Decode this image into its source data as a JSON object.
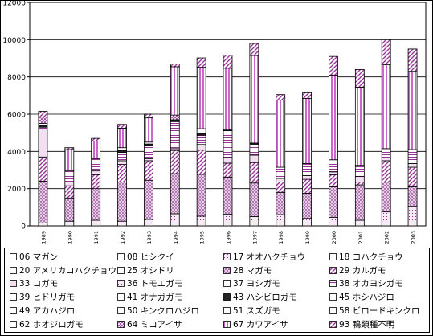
{
  "chart_data": {
    "type": "bar",
    "stacked": true,
    "categories": [
      "1989",
      "1990",
      "1991",
      "1992",
      "1993",
      "1994",
      "1995",
      "1996",
      "1997",
      "1998",
      "1999",
      "2000",
      "2001",
      "2002",
      "2003"
    ],
    "ylim": [
      0,
      12000
    ],
    "yticks": [
      "0",
      "2000",
      "4000",
      "6000",
      "8000",
      "10000",
      "12000"
    ],
    "grid": true,
    "legend_position": "bottom",
    "series": [
      {
        "name": "06 マガン",
        "values": [
          0,
          0,
          0,
          0,
          0,
          0,
          0,
          0,
          0,
          0,
          0,
          0,
          0,
          0,
          0
        ]
      },
      {
        "name": "08 ヒシクイ",
        "values": [
          0,
          0,
          0,
          0,
          0,
          0,
          0,
          0,
          0,
          0,
          0,
          0,
          0,
          0,
          0
        ]
      },
      {
        "name": "17 オオハクチョウ",
        "values": [
          150,
          250,
          300,
          250,
          350,
          650,
          520,
          620,
          500,
          600,
          400,
          450,
          300,
          750,
          1050
        ]
      },
      {
        "name": "18 コハクチョウ",
        "values": [
          0,
          0,
          0,
          0,
          0,
          0,
          0,
          0,
          0,
          0,
          0,
          0,
          0,
          0,
          0
        ]
      },
      {
        "name": "20 アメリカコハクチョウ",
        "values": [
          0,
          0,
          0,
          0,
          0,
          0,
          0,
          0,
          0,
          0,
          0,
          0,
          0,
          0,
          0
        ]
      },
      {
        "name": "25 オシドリ",
        "values": [
          0,
          0,
          0,
          0,
          0,
          0,
          0,
          0,
          0,
          0,
          0,
          0,
          0,
          0,
          0
        ]
      },
      {
        "name": "28 マガモ",
        "values": [
          2250,
          1250,
          1700,
          2100,
          2100,
          2150,
          2250,
          2000,
          1800,
          1200,
          1350,
          1650,
          1900,
          1600,
          1050
        ]
      },
      {
        "name": "29 カルガモ",
        "values": [
          1300,
          650,
          750,
          950,
          1050,
          1250,
          1300,
          750,
          1100,
          550,
          750,
          650,
          150,
          1150,
          1050
        ]
      },
      {
        "name": "33 コガモ",
        "values": [
          1500,
          200,
          200,
          200,
          100,
          100,
          300,
          300,
          400,
          200,
          200,
          150,
          300,
          150,
          200
        ]
      },
      {
        "name": "36 トモエガモ",
        "values": [
          0,
          0,
          0,
          0,
          0,
          0,
          0,
          0,
          0,
          0,
          0,
          0,
          0,
          0,
          0
        ]
      },
      {
        "name": "37 ヨシガモ",
        "values": [
          0,
          0,
          0,
          0,
          0,
          0,
          0,
          0,
          0,
          0,
          0,
          0,
          0,
          0,
          0
        ]
      },
      {
        "name": "38 オカヨシガモ",
        "values": [
          100,
          600,
          650,
          450,
          700,
          1450,
          500,
          1450,
          550,
          600,
          650,
          650,
          600,
          500,
          750
        ]
      },
      {
        "name": "39 ヒドリガモ",
        "values": [
          0,
          0,
          0,
          0,
          0,
          0,
          0,
          0,
          0,
          0,
          0,
          0,
          0,
          0,
          0
        ]
      },
      {
        "name": "41 オナガガモ",
        "values": [
          0,
          0,
          0,
          0,
          0,
          0,
          0,
          0,
          0,
          0,
          0,
          0,
          0,
          0,
          0
        ]
      },
      {
        "name": "43 ハシビロガモ",
        "values": [
          100,
          0,
          0,
          100,
          100,
          100,
          100,
          0,
          100,
          0,
          0,
          0,
          0,
          0,
          0
        ]
      },
      {
        "name": "45 ホシハジロ",
        "values": [
          0,
          0,
          0,
          0,
          0,
          0,
          0,
          0,
          0,
          0,
          0,
          0,
          0,
          0,
          0
        ]
      },
      {
        "name": "49 アカハジロ",
        "values": [
          0,
          0,
          0,
          0,
          0,
          0,
          0,
          0,
          0,
          0,
          0,
          0,
          0,
          0,
          0
        ]
      },
      {
        "name": "50 キンクロハジロ",
        "values": [
          0,
          0,
          0,
          0,
          0,
          0,
          0,
          0,
          0,
          0,
          0,
          0,
          0,
          0,
          0
        ]
      },
      {
        "name": "51 スズガモ",
        "values": [
          0,
          0,
          0,
          0,
          0,
          0,
          0,
          0,
          0,
          0,
          0,
          0,
          0,
          0,
          0
        ]
      },
      {
        "name": "58 ビロードキンクロ",
        "values": [
          0,
          0,
          0,
          0,
          0,
          0,
          0,
          0,
          0,
          0,
          0,
          0,
          0,
          0,
          0
        ]
      },
      {
        "name": "62 ホオジロガモ",
        "values": [
          100,
          50,
          50,
          150,
          100,
          0,
          250,
          0,
          0,
          0,
          0,
          0,
          0,
          0,
          0
        ]
      },
      {
        "name": "64 ミコアイサ",
        "values": [
          350,
          0,
          0,
          0,
          0,
          250,
          0,
          50,
          0,
          0,
          0,
          0,
          0,
          0,
          0
        ]
      },
      {
        "name": "67 カワアイサ",
        "values": [
          0,
          1100,
          900,
          1050,
          1300,
          2600,
          3300,
          3300,
          4700,
          3600,
          3500,
          4550,
          4200,
          4500,
          4200
        ]
      },
      {
        "name": "93 鴨類種不明",
        "values": [
          300,
          100,
          150,
          200,
          200,
          150,
          500,
          700,
          650,
          300,
          300,
          1000,
          950,
          1350,
          1200
        ]
      }
    ]
  },
  "colors": {
    "plot_bg": "#ffffff",
    "bar_stroke": "#000000",
    "grid": "#000000",
    "purple": "#993399",
    "lavender": "#cc99cc",
    "light": "#f2e6f2"
  }
}
